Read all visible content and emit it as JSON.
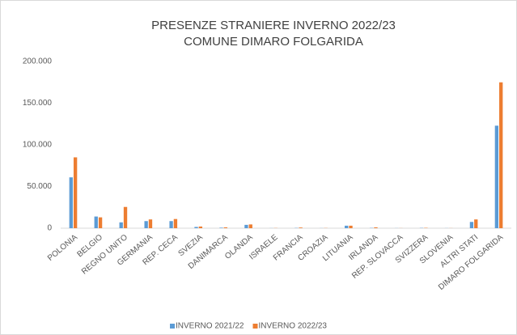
{
  "chart_data": {
    "type": "bar",
    "title": [
      "PRESENZE STRANIERE INVERNO 2022/23",
      "COMUNE DIMARO FOLGARIDA"
    ],
    "categories": [
      "POLONIA",
      "BELGIO",
      "REGNO UNITO",
      "GERMANIA",
      "REP. CECA",
      "SVEZIA",
      "DANIMARCA",
      "OLANDA",
      "ISRAELE",
      "FRANCIA",
      "CROAZIA",
      "LITUANIA",
      "IRLANDA",
      "REP. SLOVACCA",
      "SVIZZERA",
      "SLOVENIA",
      "ALTRI STATI",
      "DIMARO FOLGARIDA"
    ],
    "series": [
      {
        "name": "INVERNO 2021/22",
        "color": "#5b9bd5",
        "values": [
          61000,
          14000,
          7000,
          8500,
          8500,
          1500,
          600,
          4000,
          100,
          300,
          100,
          3000,
          300,
          100,
          300,
          100,
          7500,
          123000
        ]
      },
      {
        "name": "INVERNO 2022/23",
        "color": "#ed7d31",
        "values": [
          85000,
          13000,
          25500,
          10500,
          11000,
          2000,
          1000,
          4500,
          200,
          800,
          200,
          3000,
          1000,
          100,
          400,
          100,
          10500,
          175000
        ]
      }
    ],
    "ylim": [
      0,
      200000
    ],
    "yticks": [
      0,
      {
        "value": 50000,
        "label": "50.000"
      },
      {
        "value": 100000,
        "label": "100.000"
      },
      {
        "value": 150000,
        "label": "150.000"
      },
      {
        "value": 200000,
        "label": "200.000"
      }
    ],
    "grid": false,
    "legend": "bottom"
  }
}
